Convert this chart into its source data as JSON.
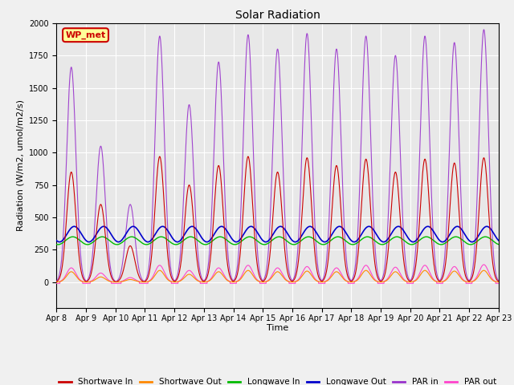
{
  "title": "Solar Radiation",
  "xlabel": "Time",
  "ylabel": "Radiation (W/m2, umol/m2/s)",
  "ylim": [
    -200,
    2000
  ],
  "xlim": [
    0,
    15.0
  ],
  "x_tick_labels": [
    "Apr 8",
    "Apr 9",
    "Apr 10",
    "Apr 11",
    "Apr 12",
    "Apr 13",
    "Apr 14",
    "Apr 15",
    "Apr 16",
    "Apr 17",
    "Apr 18",
    "Apr 19",
    "Apr 20",
    "Apr 21",
    "Apr 22",
    "Apr 23"
  ],
  "legend_labels": [
    "Shortwave In",
    "Shortwave Out",
    "Longwave In",
    "Longwave Out",
    "PAR in",
    "PAR out"
  ],
  "legend_colors": [
    "#cc0000",
    "#ff8800",
    "#00bb00",
    "#0000cc",
    "#9933cc",
    "#ff44cc"
  ],
  "box_label": "WP_met",
  "box_facecolor": "#ffff99",
  "box_edgecolor": "#cc0000",
  "box_textcolor": "#cc0000",
  "fig_facecolor": "#f0f0f0",
  "plot_bg_color": "#e8e8e8",
  "grid_color": "#ffffff",
  "n_days": 15,
  "pts_per_day": 144,
  "day_par_peaks": [
    1660,
    1050,
    600,
    1900,
    1370,
    1700,
    1910,
    1800,
    1920,
    1800,
    1900,
    1750,
    1900,
    1850,
    1950
  ],
  "day_sw_peaks": [
    850,
    600,
    280,
    970,
    750,
    900,
    970,
    850,
    960,
    900,
    950,
    850,
    950,
    920,
    960
  ],
  "day_swout_peaks": [
    80,
    40,
    20,
    90,
    60,
    80,
    90,
    80,
    85,
    80,
    90,
    80,
    90,
    85,
    90
  ],
  "day_parout_peaks": [
    110,
    70,
    35,
    130,
    90,
    110,
    130,
    110,
    120,
    110,
    130,
    115,
    130,
    120,
    135
  ],
  "longwave_in_base": 320,
  "longwave_in_amp": 30,
  "longwave_out_base": 370,
  "longwave_out_amp": 60
}
